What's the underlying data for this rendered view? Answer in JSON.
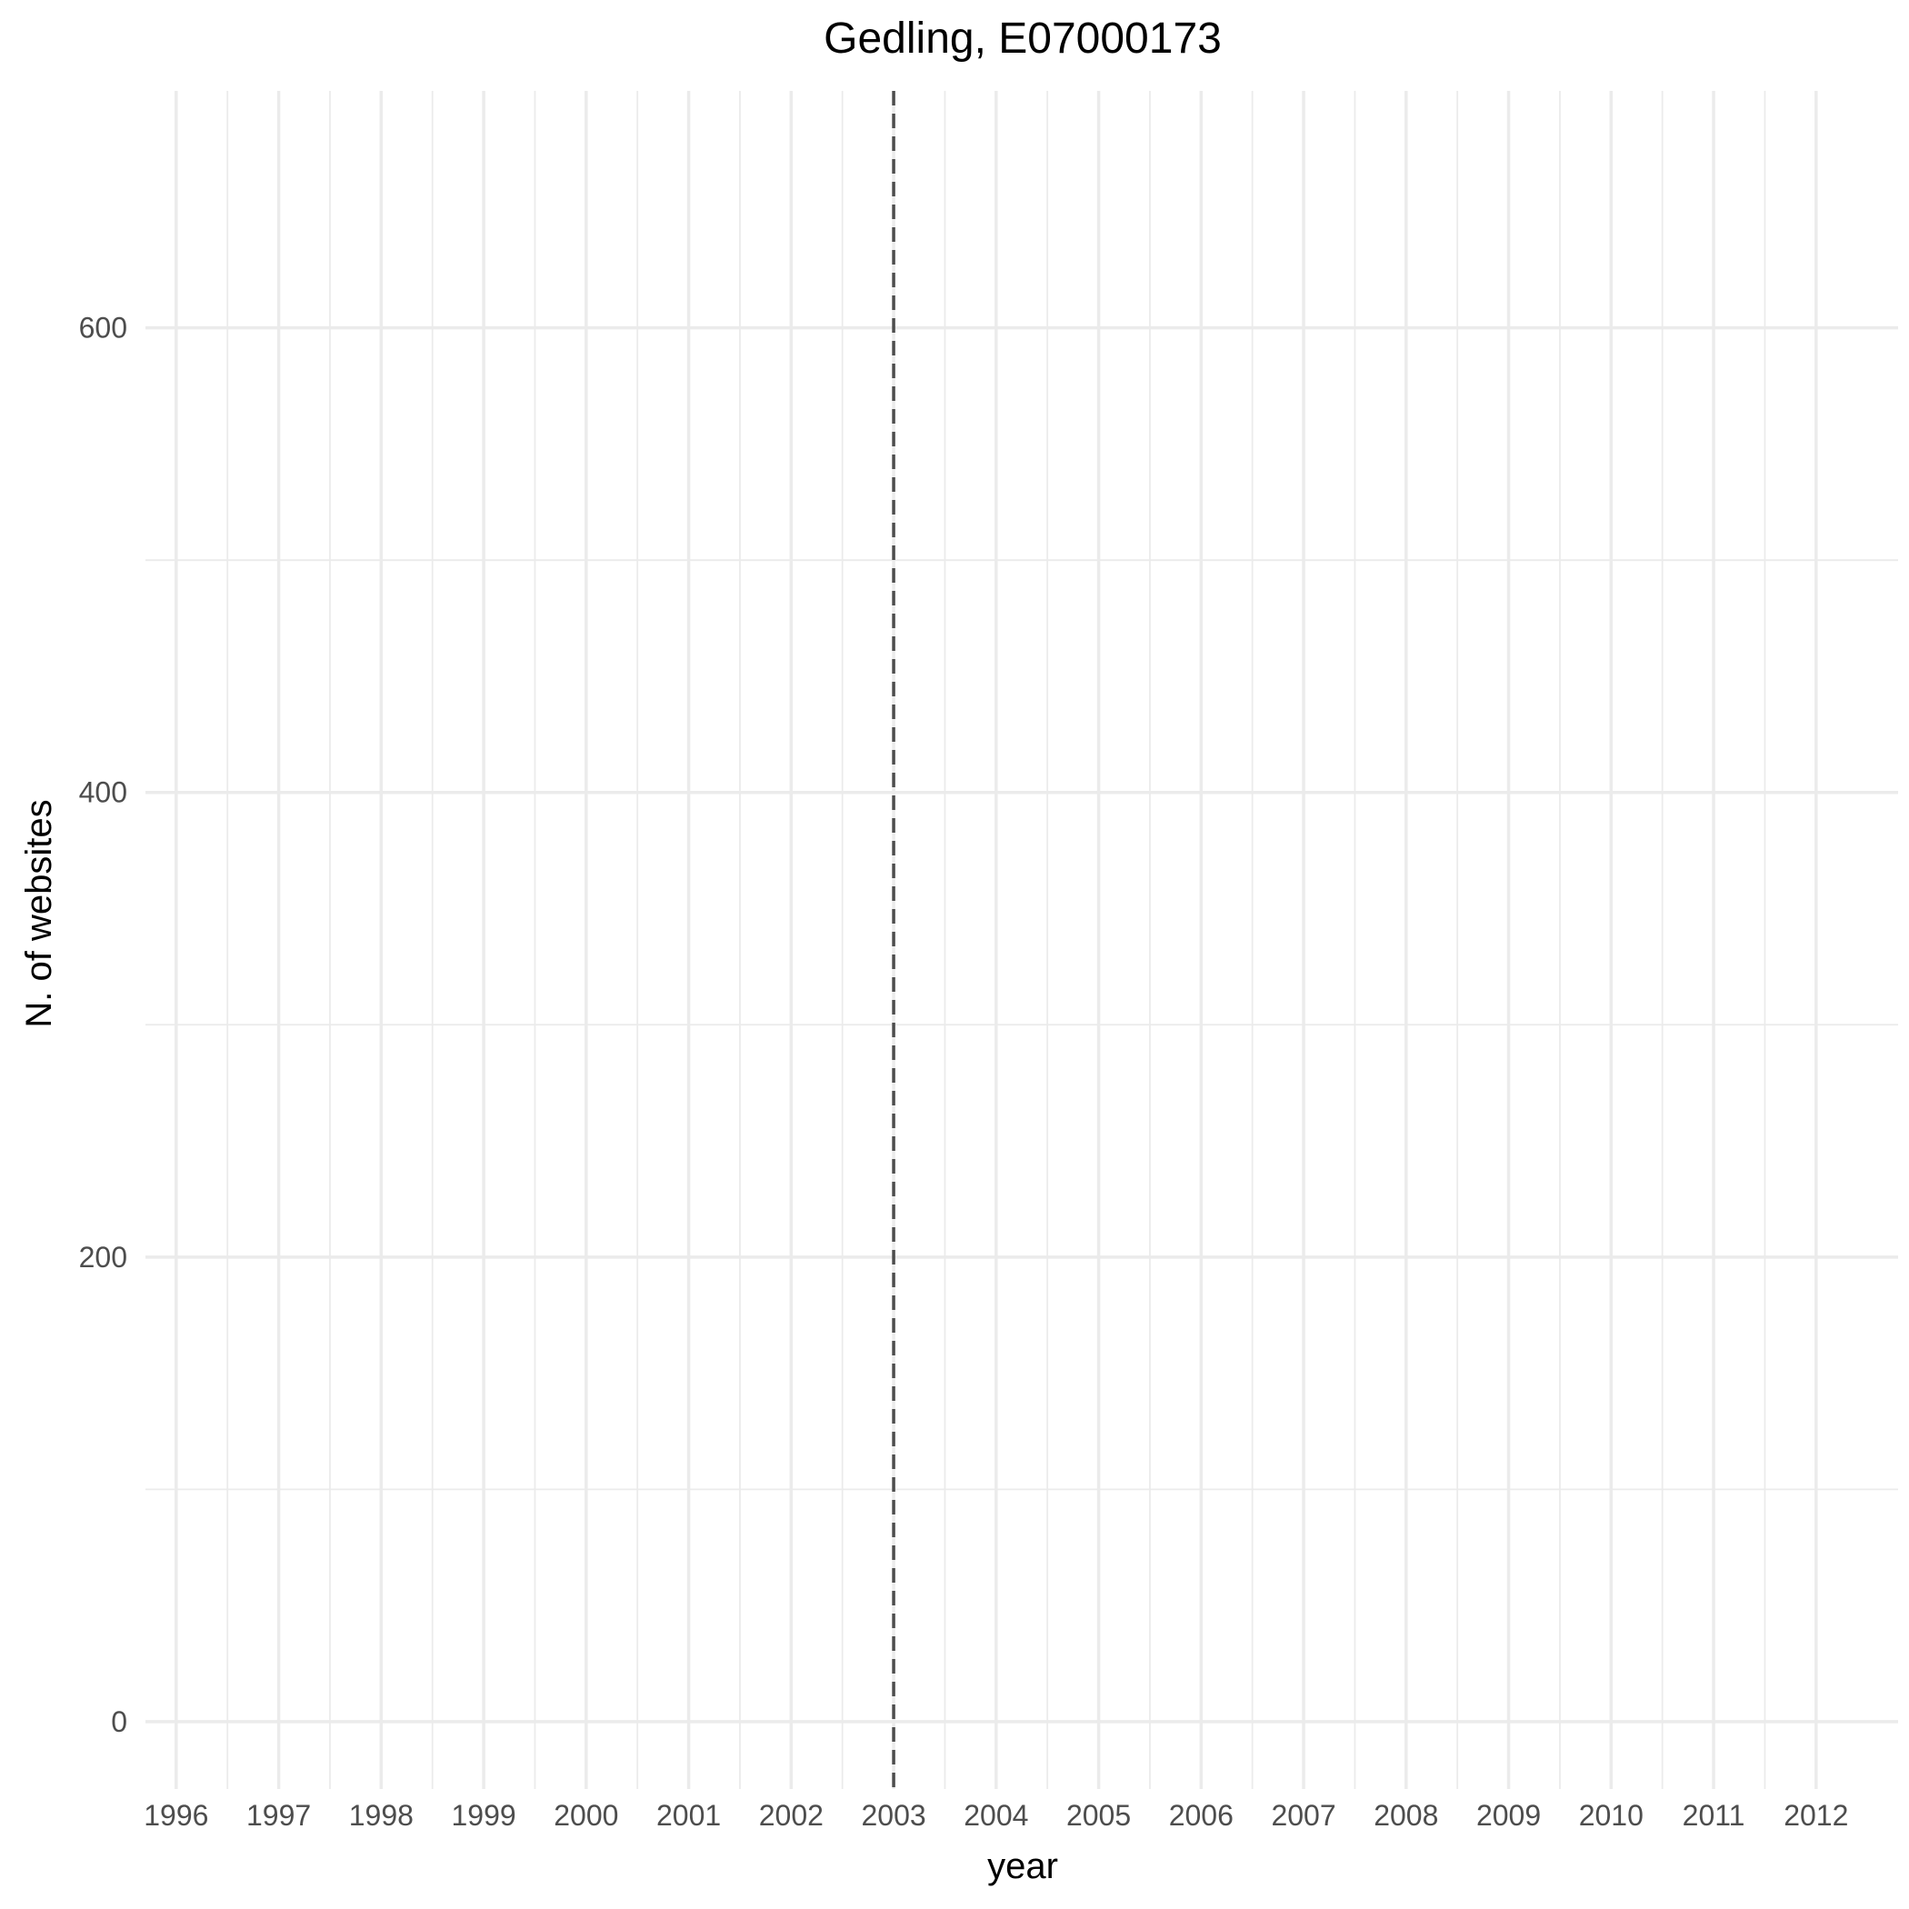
{
  "chart_data": {
    "type": "line",
    "title": "Gedling, E07000173",
    "xlabel": "year",
    "ylabel": "N. of websites",
    "x_ticks": [
      "1996",
      "1997",
      "1998",
      "1999",
      "2000",
      "2001",
      "2002",
      "2003",
      "2004",
      "2005",
      "2006",
      "2007",
      "2008",
      "2009",
      "2010",
      "2011",
      "2012"
    ],
    "y_ticks": [
      0,
      200,
      400,
      600
    ],
    "xlim": [
      1995.7,
      2012.8
    ],
    "ylim": [
      -29,
      702
    ],
    "grid": true,
    "series": [],
    "reference_line": {
      "orientation": "vertical",
      "x": 2003,
      "style": "dashed",
      "color": "#4d4d4d"
    }
  }
}
